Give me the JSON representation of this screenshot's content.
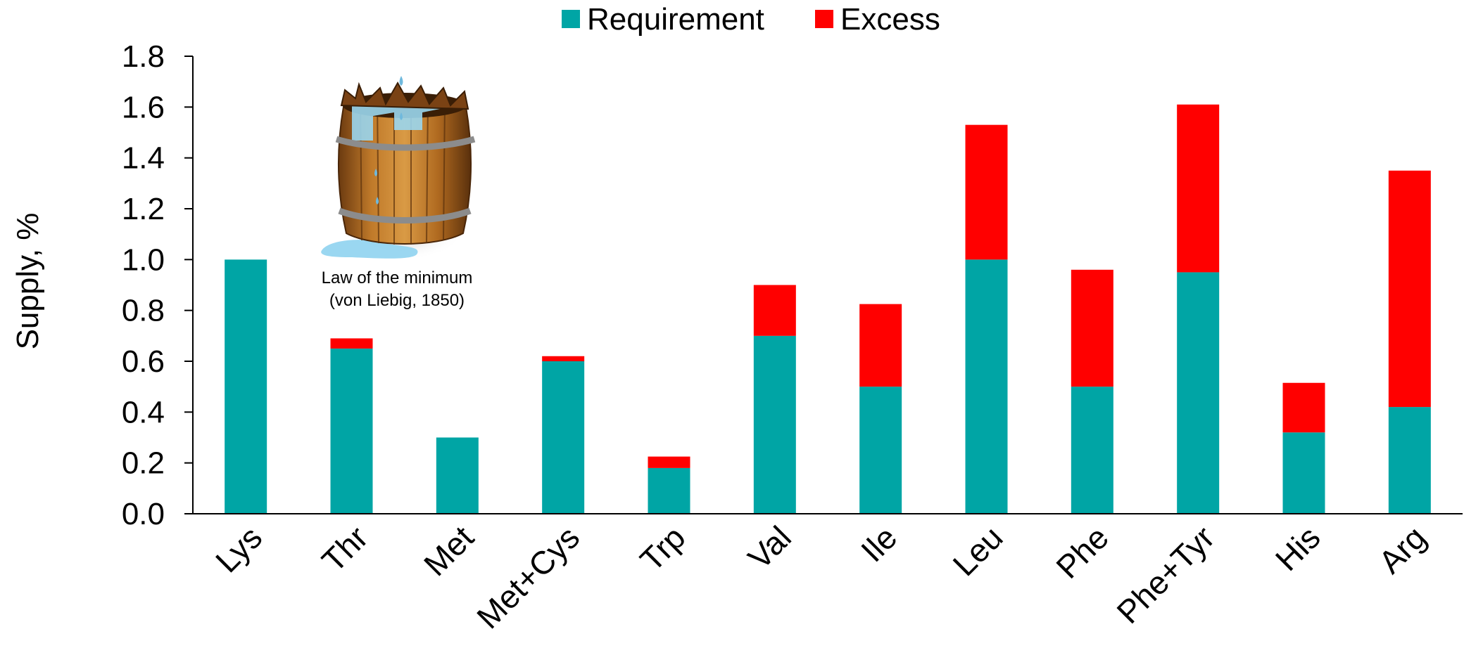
{
  "colors": {
    "requirement": "#00A5A5",
    "excess": "#FF0000",
    "axis": "#000000"
  },
  "chart_data": {
    "type": "bar",
    "stacked": true,
    "categories": [
      "Lys",
      "Thr",
      "Met",
      "Met+Cys",
      "Trp",
      "Val",
      "Ile",
      "Leu",
      "Phe",
      "Phe+Tyr",
      "His",
      "Arg"
    ],
    "series": [
      {
        "name": "Requirement",
        "values": [
          1.0,
          0.65,
          0.3,
          0.6,
          0.18,
          0.7,
          0.5,
          1.0,
          0.5,
          0.95,
          0.32,
          0.42
        ]
      },
      {
        "name": "Excess",
        "values": [
          0.0,
          0.04,
          0.0,
          0.02,
          0.045,
          0.2,
          0.325,
          0.53,
          0.46,
          0.66,
          0.195,
          0.93
        ]
      }
    ],
    "title": "",
    "xlabel": "",
    "ylabel": "Supply, %",
    "ylim": [
      0,
      1.8
    ],
    "yticks": [
      "0.0",
      "0.2",
      "0.4",
      "0.6",
      "0.8",
      "1.0",
      "1.2",
      "1.4",
      "1.6",
      "1.8"
    ],
    "grid": false,
    "legend_position": "top-center",
    "annotation": {
      "image": "leaky-barrel",
      "lines": [
        "Law of the minimum",
        "(von Liebig, 1850)"
      ]
    }
  }
}
